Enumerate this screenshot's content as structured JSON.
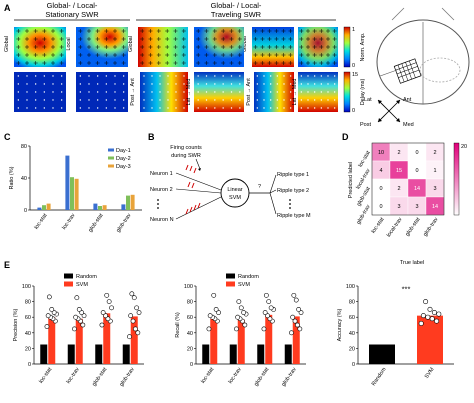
{
  "panels": {
    "A": {
      "label": "A",
      "group_left": "Global- / Local-\nStationary SWR",
      "group_right": "Global- / Local-\nTraveling SWR",
      "col_labels": [
        "Global",
        "Local"
      ],
      "colorbar_top": {
        "ticks": [
          "1",
          "0"
        ],
        "label": "Norm. Amp."
      },
      "colorbar_bottom": {
        "ticks": [
          "15",
          "0"
        ],
        "label": "Delay (ms)"
      },
      "dir_labels": [
        {
          "a": "Post",
          "b": "Ant"
        },
        {
          "a": "Lat",
          "b": "Med"
        },
        {
          "a": "Post",
          "b": "Ant"
        },
        {
          "a": "Lat",
          "b": "Med"
        }
      ],
      "compass": {
        "lat": "Lat",
        "ant": "Ant",
        "post": "Post",
        "med": "Med"
      }
    },
    "B": {
      "label": "B",
      "firing_note": "Firing counts\nduring SWR",
      "neurons": [
        "Neuron 1",
        "Neuron 2",
        "Neuron N"
      ],
      "classifier": "Linear\nSVM",
      "question": "?",
      "outputs": [
        "Ripple type 1",
        "Ripple type 2",
        "Ripple type M"
      ]
    },
    "D": {
      "label": "D",
      "ylabel": "Predicted label",
      "xlabel": "True label",
      "colorbar_max": "20",
      "categories": [
        "loc-stat",
        "local-trav",
        "glob-stat",
        "glob-trav"
      ],
      "matrix": [
        [
          "10",
          "2",
          "0",
          "2"
        ],
        [
          "4",
          "15",
          "0",
          "1"
        ],
        [
          "0",
          "2",
          "14",
          "3"
        ],
        [
          "0",
          "3",
          "3",
          "14"
        ]
      ]
    },
    "E": {
      "label": "E"
    }
  },
  "chart_data": [
    {
      "type": "bar",
      "panel": "C",
      "title": "C",
      "ylabel": "Ratio (%)",
      "xlabel": "",
      "ylim": [
        0,
        80
      ],
      "yticks": [
        0,
        40,
        80
      ],
      "categories": [
        "loc-stat",
        "loc-trav",
        "glob-stat",
        "glob-trav"
      ],
      "legend": "top-right",
      "series": [
        {
          "name": "Day-1",
          "color": "#3a6fd0",
          "values": [
            3,
            68,
            8,
            7
          ]
        },
        {
          "name": "Day-2",
          "color": "#7fbf5a",
          "values": [
            6,
            41,
            5,
            18
          ]
        },
        {
          "name": "Day-3",
          "color": "#e8a33a",
          "values": [
            8,
            39,
            6,
            19
          ]
        }
      ]
    },
    {
      "type": "bar",
      "panel": "E-precision",
      "ylabel": "Precision (%)",
      "xlabel": "",
      "ylim": [
        0,
        100
      ],
      "yticks": [
        0,
        20,
        40,
        60,
        80,
        100
      ],
      "categories": [
        "loc-stat",
        "loc-trav",
        "glob-stat",
        "glob-trav"
      ],
      "legend": "top-center",
      "series": [
        {
          "name": "Random",
          "color": "#000000",
          "values": [
            25,
            25,
            25,
            25
          ]
        },
        {
          "name": "SVM",
          "color": "#ff3b1f",
          "values": [
            60,
            58,
            65,
            61
          ]
        }
      ],
      "points": [
        [
          48,
          55,
          58,
          60,
          62,
          64,
          66,
          70,
          86
        ],
        [
          45,
          50,
          55,
          58,
          60,
          62,
          66,
          70,
          85
        ],
        [
          50,
          55,
          58,
          62,
          66,
          72,
          80,
          88
        ],
        [
          35,
          40,
          45,
          55,
          62,
          66,
          72,
          85,
          90
        ]
      ]
    },
    {
      "type": "bar",
      "panel": "E-recall",
      "ylabel": "Recall (%)",
      "xlabel": "",
      "ylim": [
        0,
        100
      ],
      "yticks": [
        0,
        20,
        40,
        60,
        80,
        100
      ],
      "categories": [
        "loc-stat",
        "loc-trav",
        "glob-stat",
        "glob-trav"
      ],
      "legend": "top-center",
      "series": [
        {
          "name": "Random",
          "color": "#000000",
          "values": [
            25,
            25,
            25,
            25
          ]
        },
        {
          "name": "SVM",
          "color": "#ff3b1f",
          "values": [
            58,
            57,
            63,
            61
          ]
        }
      ],
      "points": [
        [
          45,
          55,
          58,
          60,
          62,
          66,
          70,
          88
        ],
        [
          45,
          50,
          55,
          58,
          60,
          64,
          66,
          72,
          80
        ],
        [
          45,
          55,
          58,
          62,
          66,
          70,
          72,
          80,
          88
        ],
        [
          40,
          45,
          50,
          55,
          60,
          66,
          70,
          82,
          88
        ]
      ]
    },
    {
      "type": "bar",
      "panel": "E-accuracy",
      "ylabel": "Accuracy (%)",
      "xlabel": "",
      "ylim": [
        0,
        100
      ],
      "yticks": [
        0,
        20,
        40,
        60,
        80,
        100
      ],
      "categories": [
        "Random",
        "SVM"
      ],
      "annotation": "***",
      "series": [
        {
          "name": "",
          "colors": [
            "#000000",
            "#ff3b1f"
          ],
          "values": [
            25,
            62
          ]
        }
      ],
      "points": [
        [],
        [
          52,
          55,
          58,
          60,
          62,
          64,
          66,
          70,
          80
        ]
      ]
    }
  ],
  "colors": {
    "svm": "#ff3b1f",
    "random": "#000000",
    "confusion_low": "#ffffff",
    "confusion_high": "#e0007a"
  }
}
